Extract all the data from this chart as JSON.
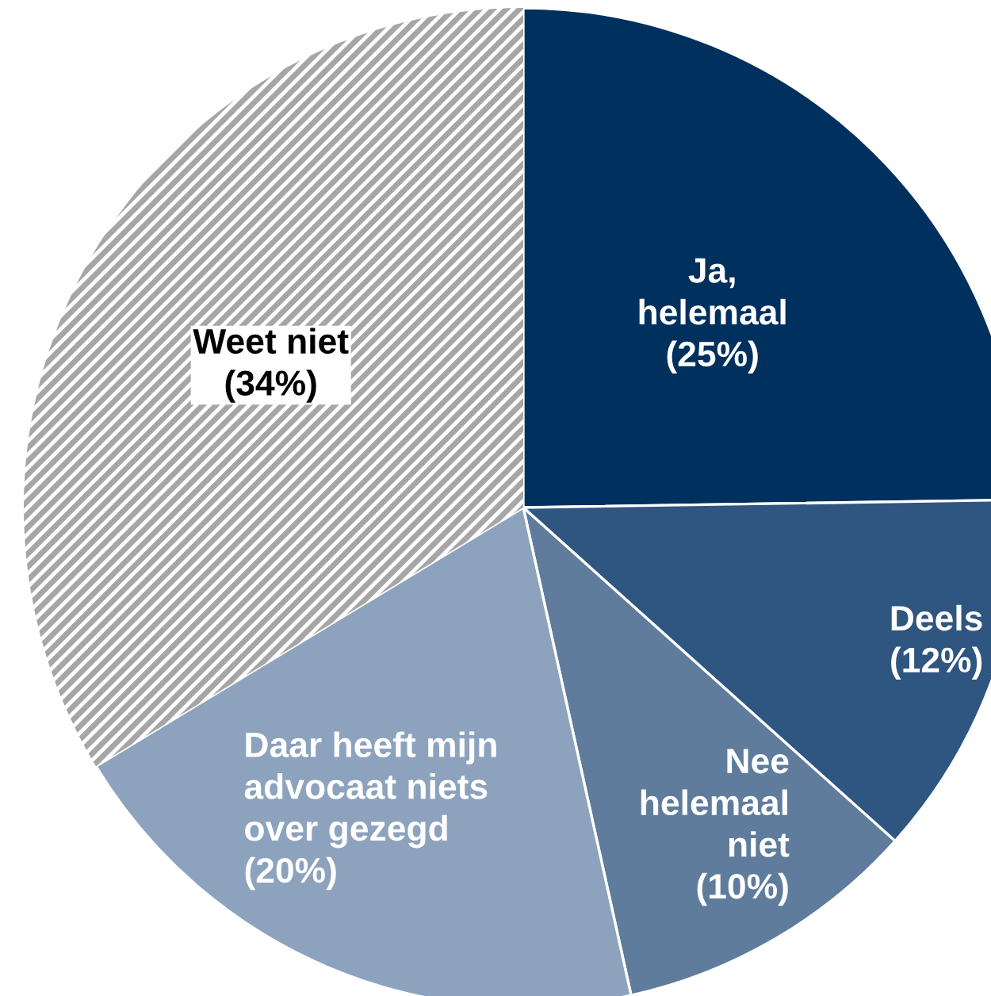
{
  "chart_data": {
    "type": "pie",
    "categories": [
      "Ja,\nhelemaal",
      "Deels",
      "Nee\nhelemaal\nniet",
      "Daar heeft mijn\nadvocaat niets\nover gezegd",
      "Weet niet"
    ],
    "values": [
      25,
      12,
      10,
      20,
      34
    ],
    "value_labels": [
      "(25%)",
      "(12%)",
      "(10%)",
      "(20%)",
      "(34%)"
    ],
    "colors": [
      "#00305e",
      "#2f5581",
      "#5f7c9c",
      "#8da3bd",
      "#ffffff"
    ],
    "legend": false
  }
}
